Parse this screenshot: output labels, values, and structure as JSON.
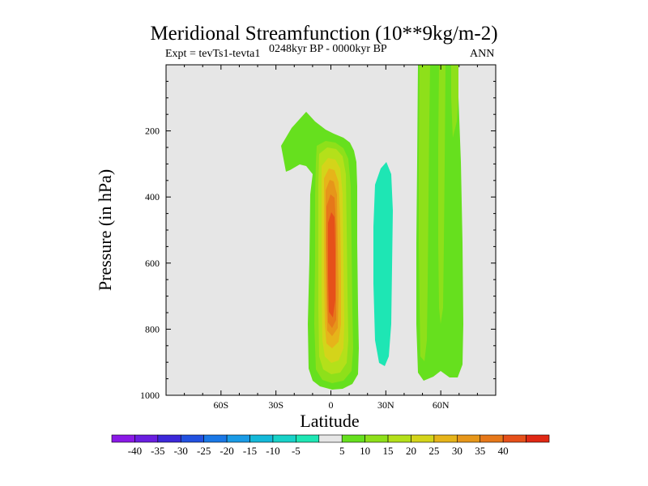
{
  "chart_data": {
    "type": "contour",
    "title": "Meridional Streamfunction (10**9kg/m-2)",
    "left_label": "Expt = tevTs1-tevta1",
    "center_label": "0248kyr BP - 0000kyr BP",
    "right_label": "ANN",
    "xlabel": "Latitude",
    "ylabel": "Pressure (in hPa)",
    "xlim": [
      -90,
      90
    ],
    "ylim": [
      1000,
      0
    ],
    "x_ticks": [
      {
        "value": -60,
        "label": "60S"
      },
      {
        "value": -30,
        "label": "30S"
      },
      {
        "value": 0,
        "label": "0"
      },
      {
        "value": 30,
        "label": "30N"
      },
      {
        "value": 60,
        "label": "60N"
      }
    ],
    "y_ticks": [
      {
        "value": 200,
        "label": "200"
      },
      {
        "value": 400,
        "label": "400"
      },
      {
        "value": 600,
        "label": "600"
      },
      {
        "value": 800,
        "label": "800"
      },
      {
        "value": 1000,
        "label": "1000"
      }
    ],
    "colorbar": {
      "labels": [
        "-40",
        "-35",
        "-30",
        "-25",
        "-20",
        "-15",
        "-10",
        "-5",
        "5",
        "10",
        "15",
        "20",
        "25",
        "30",
        "35",
        "40"
      ],
      "colors": [
        "#8a19e6",
        "#6a1ee0",
        "#3c28d9",
        "#2251e0",
        "#1a78e6",
        "#1a9be6",
        "#14b9d9",
        "#18d2c8",
        "#1ee6b4",
        "#e6e6e6",
        "#66e01e",
        "#8ee01a",
        "#b4e01a",
        "#d4d41a",
        "#e6b41a",
        "#e6961a",
        "#e6781a",
        "#e6501a",
        "#e02814"
      ]
    },
    "contour_levels_filled": [
      {
        "level": "5",
        "color": "#66e01e"
      },
      {
        "level": "10",
        "color": "#8ee01a"
      },
      {
        "level": "15",
        "color": "#b4e01a"
      },
      {
        "level": "20",
        "color": "#d4d41a"
      },
      {
        "level": "25",
        "color": "#e6b41a"
      },
      {
        "level": "30",
        "color": "#e6961a"
      },
      {
        "level": "35",
        "color": "#e6781a"
      },
      {
        "level": "40",
        "color": "#e6501a"
      },
      {
        "level": "-5",
        "color": "#1ee6b4"
      }
    ],
    "background_color": "#e6e6e6"
  }
}
